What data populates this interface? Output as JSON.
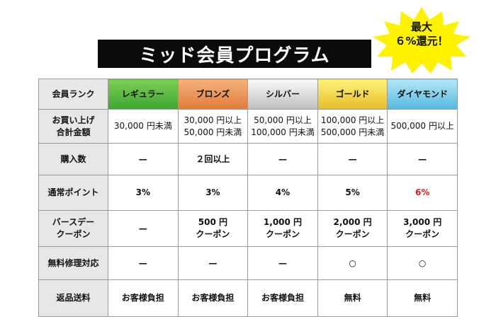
{
  "title": "ミッド会員プログラム",
  "badge": {
    "line1": "最大",
    "line2": "６%還元！",
    "color": "#fff200"
  },
  "table": {
    "corner": "会員ランク",
    "ranks": [
      {
        "label": "レギュラー",
        "color": "#5cbc43"
      },
      {
        "label": "ブロンズ",
        "color": "#ec9557"
      },
      {
        "label": "シルバー",
        "color": "#d6d6d6"
      },
      {
        "label": "ゴールド",
        "color": "#f3d84a"
      },
      {
        "label": "ダイヤモンド",
        "color": "#7fcbe8"
      }
    ],
    "total": {
      "label_line1": "お買い上げ",
      "label_line2": "合計金額",
      "values": [
        {
          "line1": "30,000 円未満",
          "line2": ""
        },
        {
          "line1": "30,000 円以上",
          "line2": "50,000 円未満"
        },
        {
          "line1": "50,000 円以上",
          "line2": "100,000 円未満"
        },
        {
          "line1": "100,000 円以上",
          "line2": "500,000 円未満"
        },
        {
          "line1": "500,000 円以上",
          "line2": ""
        }
      ]
    },
    "count": {
      "label": "購入数",
      "values": [
        "—",
        "２回以上",
        "—",
        "—",
        "—"
      ]
    },
    "points": {
      "label": "通常ポイント",
      "values": [
        "3%",
        "3%",
        "4%",
        "5%",
        "6%"
      ],
      "highlight_color": "#d6201f"
    },
    "birthday": {
      "label_line1": "バースデー",
      "label_line2": "クーポン",
      "values": [
        {
          "line1": "—",
          "line2": ""
        },
        {
          "line1": "500 円",
          "line2": "クーポン"
        },
        {
          "line1": "1,000 円",
          "line2": "クーポン"
        },
        {
          "line1": "2,000 円",
          "line2": "クーポン"
        },
        {
          "line1": "3,000 円",
          "line2": "クーポン"
        }
      ]
    },
    "repair": {
      "label": "無料修理対応",
      "values": [
        "—",
        "—",
        "—",
        "○",
        "○"
      ]
    },
    "return_shipping": {
      "label": "返品送料",
      "values": [
        "お客様負担",
        "お客様負担",
        "お客様負担",
        "無料",
        "無料"
      ]
    }
  }
}
